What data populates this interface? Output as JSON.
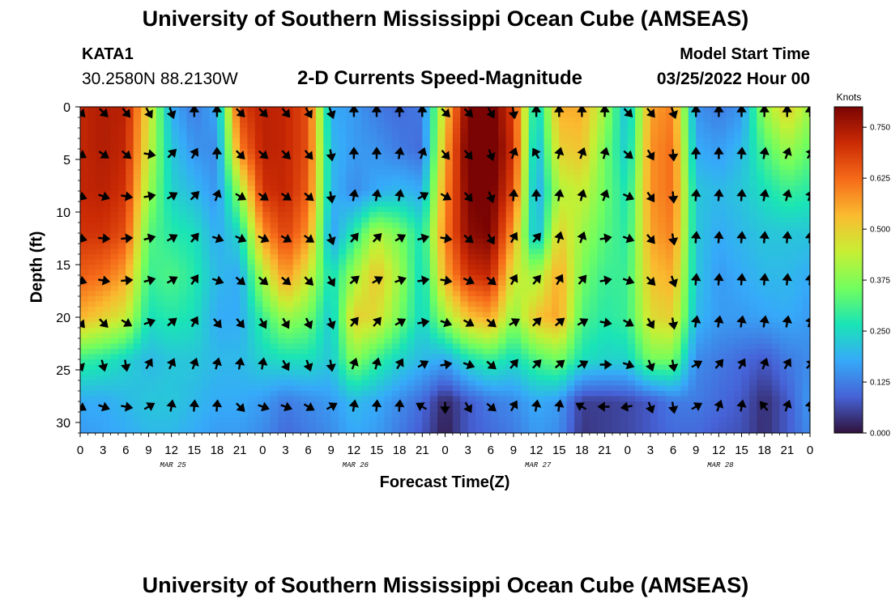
{
  "header": {
    "title": "University of Southern Mississippi Ocean Cube (AMSEAS)",
    "station_id": "KATA1",
    "coordinates": "30.2580N  88.2130W",
    "chart_title": "2-D Currents Speed-Magnitude",
    "model_start_label": "Model Start Time",
    "model_start_value": "03/25/2022 Hour 00"
  },
  "footer": {
    "title": "University of Southern Mississippi Ocean Cube (AMSEAS)"
  },
  "chart_data": {
    "type": "heatmap",
    "title": "2-D Currents Speed-Magnitude",
    "xlabel": "Forecast Time(Z)",
    "ylabel": "Depth (ft)",
    "xlim": [
      0,
      96
    ],
    "ylim": [
      31,
      0
    ],
    "x_tick_values": [
      0,
      3,
      6,
      9,
      12,
      15,
      18,
      21,
      24,
      27,
      30,
      33,
      36,
      39,
      42,
      45,
      48,
      51,
      54,
      57,
      60,
      63,
      66,
      69,
      72,
      75,
      78,
      81,
      84,
      87,
      90,
      93,
      96
    ],
    "x_tick_labels": [
      "0",
      "3",
      "6",
      "9",
      "12",
      "15",
      "18",
      "21",
      "0",
      "3",
      "6",
      "9",
      "12",
      "15",
      "18",
      "21",
      "0",
      "3",
      "6",
      "9",
      "12",
      "15",
      "18",
      "21",
      "0",
      "3",
      "6",
      "9",
      "12",
      "15",
      "18",
      "21",
      "0"
    ],
    "day_labels": [
      {
        "hour": 12,
        "label": "MAR 25"
      },
      {
        "hour": 36,
        "label": "MAR 26"
      },
      {
        "hour": 60,
        "label": "MAR 27"
      },
      {
        "hour": 84,
        "label": "MAR 28"
      }
    ],
    "y_ticks": [
      0,
      5,
      10,
      15,
      20,
      25,
      30
    ],
    "y_tick_labels": [
      "0",
      "5",
      "10",
      "15",
      "20",
      "25",
      "30"
    ],
    "colorbar": {
      "title": "Knots",
      "range": [
        0,
        0.8
      ],
      "ticks": [
        0.0,
        0.125,
        0.25,
        0.375,
        0.5,
        0.625,
        0.75
      ],
      "tick_labels": [
        "0.000",
        "0.125",
        "0.250",
        "0.375",
        "0.500",
        "0.625",
        "0.750"
      ],
      "colormap": [
        "#30123b",
        "#4662d7",
        "#36aaf9",
        "#1ae4b6",
        "#72fe5e",
        "#c7ef34",
        "#fabb30",
        "#f66b19",
        "#cb2a04",
        "#7a0403"
      ]
    },
    "speed_knots": {
      "hours": [
        0,
        3,
        6,
        9,
        12,
        15,
        18,
        21,
        24,
        27,
        30,
        33,
        36,
        39,
        42,
        45,
        48,
        51,
        54,
        57,
        60,
        63,
        66,
        69,
        72,
        75,
        78,
        81,
        84,
        87,
        90,
        93,
        96
      ],
      "depths_ft": [
        0,
        4,
        8,
        12,
        16,
        20,
        24,
        28,
        31
      ],
      "values": [
        [
          0.72,
          0.74,
          0.73,
          0.48,
          0.18,
          0.12,
          0.18,
          0.68,
          0.73,
          0.72,
          0.66,
          0.18,
          0.16,
          0.12,
          0.1,
          0.12,
          0.5,
          0.8,
          0.82,
          0.68,
          0.22,
          0.55,
          0.55,
          0.4,
          0.2,
          0.56,
          0.6,
          0.15,
          0.12,
          0.15,
          0.4,
          0.5,
          0.4
        ],
        [
          0.72,
          0.74,
          0.72,
          0.45,
          0.22,
          0.15,
          0.14,
          0.6,
          0.73,
          0.72,
          0.66,
          0.2,
          0.16,
          0.15,
          0.12,
          0.1,
          0.55,
          0.82,
          0.84,
          0.7,
          0.18,
          0.5,
          0.52,
          0.36,
          0.22,
          0.58,
          0.62,
          0.18,
          0.16,
          0.2,
          0.32,
          0.4,
          0.34
        ],
        [
          0.72,
          0.73,
          0.7,
          0.4,
          0.24,
          0.2,
          0.15,
          0.4,
          0.7,
          0.72,
          0.64,
          0.2,
          0.14,
          0.18,
          0.2,
          0.18,
          0.58,
          0.8,
          0.82,
          0.66,
          0.16,
          0.42,
          0.45,
          0.35,
          0.26,
          0.58,
          0.62,
          0.22,
          0.2,
          0.22,
          0.26,
          0.3,
          0.28
        ],
        [
          0.7,
          0.7,
          0.66,
          0.33,
          0.28,
          0.26,
          0.18,
          0.25,
          0.58,
          0.68,
          0.58,
          0.16,
          0.28,
          0.42,
          0.36,
          0.26,
          0.6,
          0.78,
          0.8,
          0.56,
          0.18,
          0.5,
          0.4,
          0.33,
          0.28,
          0.56,
          0.6,
          0.22,
          0.18,
          0.2,
          0.22,
          0.22,
          0.22
        ],
        [
          0.64,
          0.62,
          0.56,
          0.3,
          0.32,
          0.28,
          0.2,
          0.18,
          0.42,
          0.58,
          0.46,
          0.25,
          0.4,
          0.52,
          0.4,
          0.24,
          0.55,
          0.7,
          0.72,
          0.46,
          0.4,
          0.56,
          0.36,
          0.3,
          0.3,
          0.52,
          0.55,
          0.22,
          0.16,
          0.18,
          0.2,
          0.2,
          0.18
        ],
        [
          0.54,
          0.5,
          0.45,
          0.26,
          0.28,
          0.26,
          0.18,
          0.18,
          0.3,
          0.4,
          0.36,
          0.22,
          0.5,
          0.48,
          0.36,
          0.24,
          0.4,
          0.52,
          0.56,
          0.38,
          0.52,
          0.56,
          0.32,
          0.28,
          0.3,
          0.48,
          0.5,
          0.2,
          0.16,
          0.16,
          0.17,
          0.18,
          0.16
        ],
        [
          0.3,
          0.28,
          0.24,
          0.2,
          0.22,
          0.22,
          0.2,
          0.2,
          0.24,
          0.26,
          0.26,
          0.22,
          0.38,
          0.3,
          0.24,
          0.2,
          0.18,
          0.26,
          0.3,
          0.25,
          0.32,
          0.36,
          0.26,
          0.24,
          0.24,
          0.36,
          0.36,
          0.14,
          0.12,
          0.1,
          0.08,
          0.12,
          0.14
        ],
        [
          0.18,
          0.18,
          0.2,
          0.22,
          0.22,
          0.2,
          0.18,
          0.18,
          0.16,
          0.12,
          0.14,
          0.16,
          0.2,
          0.18,
          0.14,
          0.1,
          0.02,
          0.08,
          0.12,
          0.14,
          0.18,
          0.16,
          0.05,
          0.05,
          0.06,
          0.08,
          0.12,
          0.12,
          0.1,
          0.08,
          0.03,
          0.08,
          0.16
        ],
        [
          0.16,
          0.17,
          0.18,
          0.2,
          0.2,
          0.18,
          0.16,
          0.16,
          0.14,
          0.1,
          0.12,
          0.14,
          0.18,
          0.16,
          0.12,
          0.08,
          0.01,
          0.08,
          0.1,
          0.12,
          0.16,
          0.14,
          0.04,
          0.05,
          0.06,
          0.08,
          0.1,
          0.1,
          0.08,
          0.07,
          0.03,
          0.08,
          0.14
        ]
      ]
    },
    "vectors": {
      "hours": [
        0,
        3,
        6,
        9,
        12,
        15,
        18,
        21,
        24,
        27,
        30,
        33,
        36,
        39,
        42,
        45,
        48,
        51,
        54,
        57,
        60,
        63,
        66,
        69,
        72,
        75,
        78,
        81,
        84,
        87,
        90,
        93,
        96
      ],
      "depths_ft": [
        0.5,
        4.5,
        8.5,
        12.5,
        16.5,
        20.5,
        24.5,
        28.5
      ],
      "direction_deg": [
        [
          135,
          135,
          140,
          150,
          160,
          0,
          0,
          135,
          135,
          140,
          150,
          160,
          0,
          0,
          0,
          0,
          135,
          135,
          150,
          170,
          0,
          0,
          0,
          0,
          135,
          140,
          160,
          0,
          0,
          0,
          0,
          0,
          0
        ],
        [
          120,
          125,
          130,
          100,
          45,
          30,
          0,
          135,
          130,
          135,
          140,
          170,
          0,
          0,
          10,
          20,
          140,
          140,
          160,
          20,
          330,
          15,
          20,
          15,
          130,
          150,
          175,
          0,
          0,
          5,
          10,
          20,
          30
        ],
        [
          110,
          110,
          100,
          80,
          60,
          45,
          20,
          120,
          125,
          125,
          130,
          170,
          10,
          10,
          10,
          60,
          120,
          140,
          160,
          5,
          0,
          10,
          15,
          20,
          115,
          145,
          175,
          5,
          5,
          5,
          10,
          15,
          20
        ],
        [
          105,
          95,
          85,
          75,
          60,
          40,
          110,
          115,
          115,
          120,
          125,
          160,
          40,
          45,
          60,
          75,
          100,
          130,
          150,
          30,
          40,
          15,
          20,
          80,
          110,
          140,
          170,
          5,
          5,
          5,
          5,
          5,
          5
        ],
        [
          110,
          100,
          85,
          75,
          60,
          35,
          110,
          130,
          130,
          130,
          135,
          150,
          50,
          60,
          70,
          80,
          100,
          115,
          130,
          30,
          40,
          30,
          40,
          80,
          110,
          135,
          160,
          5,
          5,
          5,
          5,
          5,
          5
        ],
        [
          140,
          135,
          120,
          70,
          50,
          30,
          140,
          140,
          150,
          150,
          155,
          160,
          40,
          40,
          60,
          80,
          110,
          120,
          130,
          60,
          45,
          50,
          60,
          100,
          120,
          150,
          170,
          10,
          10,
          10,
          10,
          10,
          20
        ],
        [
          160,
          165,
          170,
          30,
          25,
          20,
          15,
          10,
          10,
          150,
          160,
          170,
          20,
          15,
          30,
          60,
          80,
          110,
          130,
          40,
          45,
          50,
          60,
          90,
          110,
          160,
          170,
          60,
          40,
          30,
          20,
          30,
          40
        ],
        [
          120,
          110,
          100,
          60,
          10,
          5,
          5,
          135,
          110,
          110,
          120,
          60,
          10,
          5,
          5,
          300,
          180,
          150,
          130,
          30,
          10,
          10,
          300,
          270,
          260,
          160,
          170,
          60,
          20,
          10,
          320,
          20,
          10
        ]
      ]
    }
  }
}
